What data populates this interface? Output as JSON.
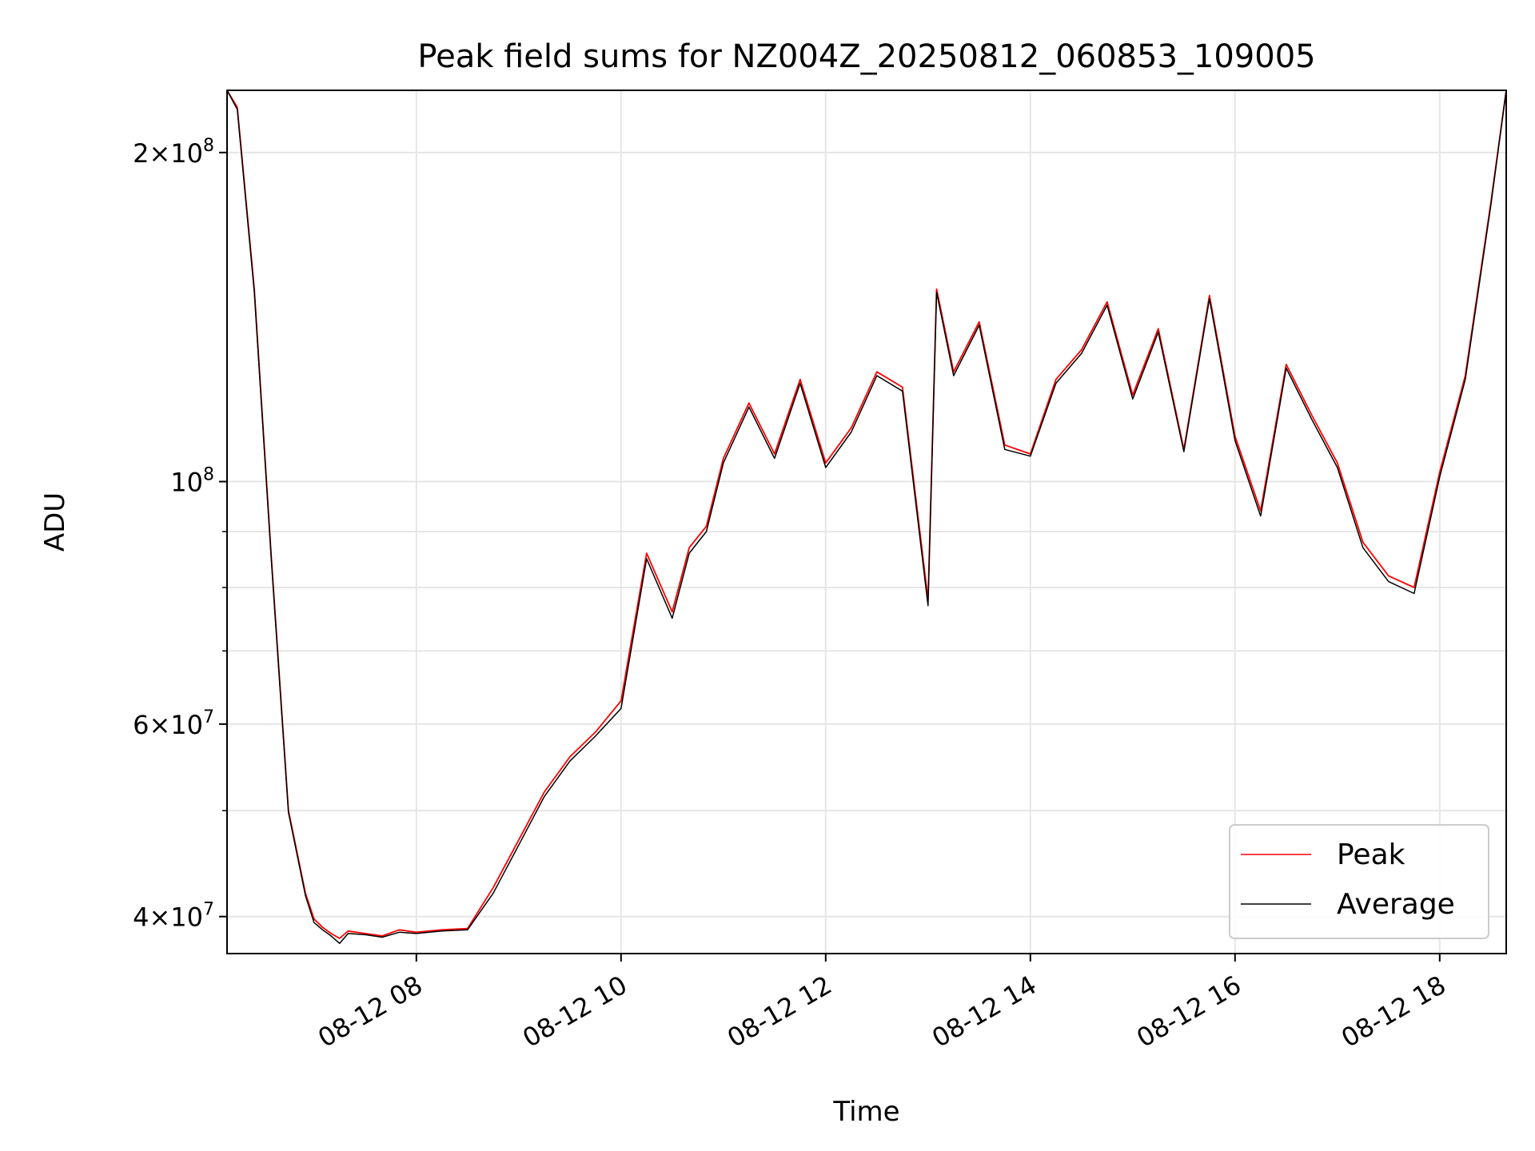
{
  "chart_data": {
    "type": "line",
    "title": "Peak field sums for NZ004Z_20250812_060853_109005",
    "xlabel": "Time",
    "ylabel": "ADU",
    "y_scale": "log",
    "xlim": [
      "2025-08-12 06:09",
      "2025-08-12 18:39"
    ],
    "ylim": [
      37000000,
      228000000
    ],
    "x_ticks": [
      "08-12 08",
      "08-12 10",
      "08-12 12",
      "08-12 14",
      "08-12 16",
      "08-12 18"
    ],
    "y_ticks_major": [
      {
        "value": 40000000,
        "mantissa": "4",
        "exponent": "7"
      },
      {
        "value": 60000000,
        "mantissa": "6",
        "exponent": "7"
      },
      {
        "value": 100000000,
        "mantissa": "",
        "exponent": "8"
      },
      {
        "value": 200000000,
        "mantissa": "2",
        "exponent": "8"
      }
    ],
    "y_ticks_minor": [
      50000000,
      70000000,
      80000000,
      90000000
    ],
    "grid": true,
    "legend_position": "bottom-right",
    "series": [
      {
        "name": "Peak",
        "color": "#ff0000",
        "x": [
          "06:09",
          "06:15",
          "06:25",
          "06:35",
          "06:45",
          "06:55",
          "07:00",
          "07:05",
          "07:10",
          "07:15",
          "07:20",
          "07:30",
          "07:40",
          "07:50",
          "08:00",
          "08:15",
          "08:30",
          "08:45",
          "09:00",
          "09:15",
          "09:30",
          "09:45",
          "10:00",
          "10:15",
          "10:30",
          "10:40",
          "10:50",
          "11:00",
          "11:15",
          "11:30",
          "11:45",
          "12:00",
          "12:15",
          "12:30",
          "12:45",
          "13:00",
          "13:05",
          "13:15",
          "13:30",
          "13:45",
          "14:00",
          "14:15",
          "14:30",
          "14:45",
          "15:00",
          "15:15",
          "15:30",
          "15:45",
          "16:00",
          "16:15",
          "16:30",
          "16:45",
          "17:00",
          "17:15",
          "17:30",
          "17:45",
          "18:00",
          "18:15",
          "18:30",
          "18:39"
        ],
        "y": [
          228000000,
          220000000,
          150000000,
          85000000,
          50000000,
          42000000,
          39800000,
          39100000,
          38600000,
          38200000,
          38800000,
          38600000,
          38400000,
          38900000,
          38700000,
          38900000,
          39000000,
          42500000,
          47000000,
          52000000,
          56000000,
          59000000,
          63000000,
          86000000,
          76000000,
          87000000,
          91000000,
          105000000,
          118000000,
          106000000,
          124000000,
          104000000,
          112000000,
          126000000,
          122000000,
          78000000,
          150000000,
          126000000,
          140000000,
          108000000,
          106000000,
          124000000,
          132000000,
          146000000,
          120000000,
          138000000,
          107000000,
          148000000,
          110000000,
          94000000,
          128000000,
          115000000,
          104000000,
          88000000,
          82000000,
          80000000,
          102000000,
          125000000,
          180000000,
          228000000
        ]
      },
      {
        "name": "Average",
        "color": "#000000",
        "x": [
          "06:09",
          "06:15",
          "06:25",
          "06:35",
          "06:45",
          "06:55",
          "07:00",
          "07:05",
          "07:10",
          "07:15",
          "07:20",
          "07:30",
          "07:40",
          "07:50",
          "08:00",
          "08:15",
          "08:30",
          "08:45",
          "09:00",
          "09:15",
          "09:30",
          "09:45",
          "10:00",
          "10:15",
          "10:30",
          "10:40",
          "10:50",
          "11:00",
          "11:15",
          "11:30",
          "11:45",
          "12:00",
          "12:15",
          "12:30",
          "12:45",
          "13:00",
          "13:05",
          "13:15",
          "13:30",
          "13:45",
          "14:00",
          "14:15",
          "14:30",
          "14:45",
          "15:00",
          "15:15",
          "15:30",
          "15:45",
          "16:00",
          "16:15",
          "16:30",
          "16:45",
          "17:00",
          "17:15",
          "17:30",
          "17:45",
          "18:00",
          "18:15",
          "18:30",
          "18:39"
        ],
        "y": [
          228000000,
          219000000,
          149000000,
          84500000,
          49800000,
          41800000,
          39500000,
          38900000,
          38400000,
          37800000,
          38600000,
          38500000,
          38300000,
          38700000,
          38600000,
          38800000,
          38900000,
          42000000,
          46500000,
          51500000,
          55500000,
          58500000,
          62000000,
          85000000,
          75000000,
          86000000,
          90000000,
          104000000,
          117000000,
          105000000,
          123000000,
          103000000,
          111000000,
          125000000,
          121000000,
          77000000,
          149000000,
          125000000,
          139000000,
          107000000,
          105500000,
          123000000,
          131000000,
          145000000,
          119000000,
          137000000,
          106500000,
          147000000,
          109000000,
          93000000,
          127000000,
          114000000,
          103000000,
          87000000,
          81000000,
          79000000,
          101000000,
          124000000,
          179000000,
          228000000
        ]
      }
    ]
  }
}
